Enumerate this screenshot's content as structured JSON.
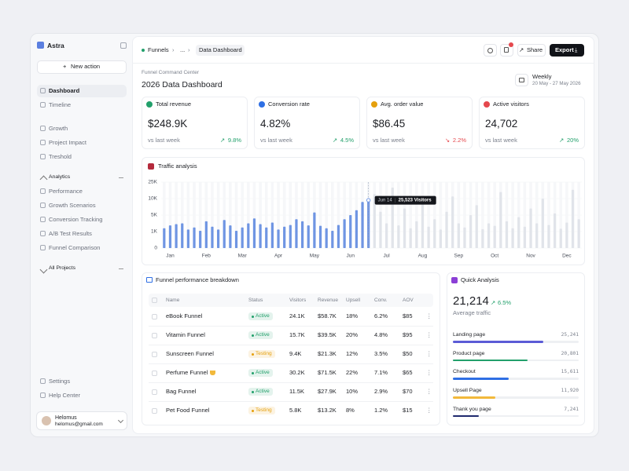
{
  "sidebar": {
    "brand": "Astra",
    "new_action": "New action",
    "nav": [
      "Dashboard",
      "Timeline",
      "Growth",
      "Project Impact",
      "Treshold"
    ],
    "analytics": {
      "title": "Analytics",
      "items": [
        "Performance",
        "Growth Scenarios",
        "Conversion Tracking",
        "A/B Test Results",
        "Funnel Comparison"
      ]
    },
    "all_projects": "All Projects",
    "footer": [
      "Settings",
      "Help Center"
    ],
    "user": {
      "name": "Helomus",
      "email": "helomus@gmail.com"
    }
  },
  "header": {
    "breadcrumb": [
      "Funnels",
      "...",
      "Data Dashboard"
    ],
    "share": "Share",
    "export": "Export"
  },
  "page": {
    "subtitle": "Funnel Command Center",
    "title": "2026 Data Dashboard",
    "period": "Weekly",
    "range": "20 May - 27 May 2026"
  },
  "kpis": [
    {
      "label": "Total revenue",
      "value": "$248.9K",
      "compare": "vs last week",
      "change": "9.8%",
      "trend": "up",
      "color": "#22a06b"
    },
    {
      "label": "Conversion rate",
      "value": "4.82%",
      "compare": "vs last week",
      "change": "4.5%",
      "trend": "up",
      "color": "#22a06b"
    },
    {
      "label": "Avg. order value",
      "value": "$86.45",
      "compare": "vs last week",
      "change": "2.2%",
      "trend": "down",
      "color": "#e5484d"
    },
    {
      "label": "Active visitors",
      "value": "24,702",
      "compare": "vs last week",
      "change": "20%",
      "trend": "up",
      "color": "#22a06b"
    }
  ],
  "chart_data": {
    "type": "bar",
    "title": "Traffic analysis",
    "categories": [
      null,
      "Jan",
      null,
      null,
      null,
      null,
      null,
      "Feb",
      null,
      null,
      null,
      null,
      null,
      "Mar",
      null,
      null,
      null,
      null,
      null,
      "Apr",
      null,
      null,
      null,
      null,
      null,
      "May",
      null,
      null,
      null,
      null,
      null,
      "Jun",
      null,
      null,
      null,
      null,
      null,
      "Jul",
      null,
      null,
      null,
      null,
      null,
      "Aug",
      null,
      null,
      null,
      null,
      null,
      "Sep",
      null,
      null,
      null,
      null,
      null,
      "Oct",
      null,
      null,
      null,
      null,
      null,
      "Nov",
      null,
      null,
      null,
      null,
      null,
      "Dec",
      null,
      null
    ],
    "series": [
      {
        "color": "#6f95e3",
        "values": [
          1800,
          2500,
          2800,
          3000,
          1500,
          2000,
          1200,
          3500,
          2200,
          1500,
          3800,
          2500,
          1200,
          2000,
          3000,
          4200,
          2800,
          2000,
          3200,
          1500,
          2200,
          2600,
          4000,
          3500,
          2500,
          5800,
          2400,
          1800,
          1200,
          2600,
          4000,
          5000,
          6500,
          9000,
          9500,
          null,
          null,
          null,
          null,
          null,
          null,
          null,
          null,
          null,
          null,
          null,
          null,
          null,
          null,
          null,
          null,
          null,
          null,
          null,
          null,
          null,
          null,
          null,
          null,
          null,
          null,
          null,
          null,
          null,
          null,
          null,
          null,
          null,
          null,
          null
        ]
      },
      {
        "color": "#e1e4ea",
        "values": [
          null,
          null,
          null,
          null,
          null,
          null,
          null,
          null,
          null,
          null,
          null,
          null,
          null,
          null,
          null,
          null,
          null,
          null,
          null,
          null,
          null,
          null,
          null,
          null,
          null,
          null,
          null,
          null,
          null,
          null,
          null,
          null,
          null,
          null,
          null,
          14000,
          6000,
          3000,
          20000,
          2500,
          7000,
          1800,
          3500,
          9000,
          2200,
          4000,
          1500,
          6000,
          12000,
          3000,
          2000,
          5000,
          8000,
          1600,
          3000,
          2400,
          16000,
          3500,
          1800,
          4500,
          2200,
          7000,
          3000,
          10000,
          2600,
          5500,
          1700,
          3200,
          18000,
          4000
        ]
      }
    ],
    "ylim": [
      0,
      25000
    ],
    "yticks": [
      0,
      {
        "value": 1000,
        "label": "1K"
      },
      {
        "value": 5000,
        "label": "5K"
      },
      {
        "value": 10000,
        "label": "10K"
      },
      {
        "value": 25000,
        "label": "25K"
      }
    ],
    "tooltip": {
      "date": "Jun 14",
      "label": "25,523 Visitors"
    }
  },
  "funnel": {
    "title": "Funnel performance breakdown",
    "columns": [
      "Name",
      "Status",
      "Visitors",
      "Revenue",
      "Upsell",
      "Conv.",
      "AOV"
    ],
    "rows": [
      [
        "eBook Funnel",
        "Active",
        "24.1K",
        "$58.7K",
        "18%",
        "6.2%",
        "$85"
      ],
      [
        "Vitamin Funnel",
        "Active",
        "15.7K",
        "$39.5K",
        "20%",
        "4.8%",
        "$95"
      ],
      [
        "Sunscreen Funnel",
        "Testing",
        "9.4K",
        "$21.3K",
        "12%",
        "3.5%",
        "$50"
      ],
      [
        "Perfume Funnel",
        "Active",
        "30.2K",
        "$71.5K",
        "22%",
        "7.1%",
        "$65"
      ],
      [
        "Bag Funnel",
        "Active",
        "11.5K",
        "$27.9K",
        "10%",
        "2.9%",
        "$70"
      ],
      [
        "Pet Food Funnel",
        "Testing",
        "5.8K",
        "$13.2K",
        "8%",
        "1.2%",
        "$15"
      ]
    ],
    "status_colors": [
      "#22a06b",
      "#22a06b",
      "#e5a00d",
      "#22a06b",
      "#22a06b",
      "#e5a00d"
    ]
  },
  "quick_analysis": {
    "title": "Quick Analysis",
    "value": "21,214",
    "change": "6.5%",
    "caption": "Average traffic",
    "items": [
      {
        "label": "Landing page",
        "value": 25241,
        "value_label": "25,241",
        "color": "#5b5bd6"
      },
      {
        "label": "Product page",
        "value": 20801,
        "value_label": "20,801",
        "color": "#22a06b"
      },
      {
        "label": "Checkout",
        "value": 15611,
        "value_label": "15,611",
        "color": "#2f6fe4"
      },
      {
        "label": "Upsell Page",
        "value": 11920,
        "value_label": "11,920",
        "color": "#f2b93b"
      },
      {
        "label": "Thank you page",
        "value": 7241,
        "value_label": "7,241",
        "color": "#1f2a6e"
      }
    ]
  }
}
